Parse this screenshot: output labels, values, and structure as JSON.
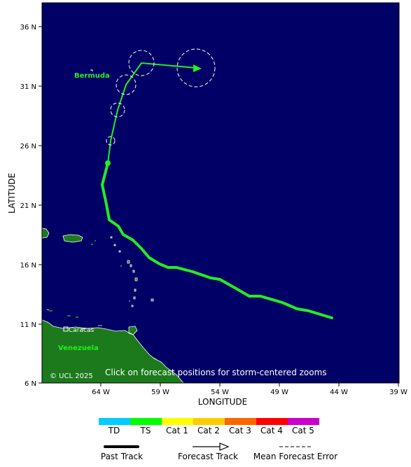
{
  "map": {
    "labels": {
      "bermuda": "Bermuda",
      "caracas": "Caracas",
      "venezuela": "Venezuela",
      "copyright": "© UCL 2025",
      "hint": "Click on forecast positions for storm-centered zooms"
    },
    "axes": {
      "x_title": "LONGITUDE",
      "y_title": "LATITUDE",
      "lat_ticks": [
        "36 N",
        "31 N",
        "26 N",
        "21 N",
        "16 N",
        "11 N",
        "6 N"
      ],
      "lon_ticks": [
        "64 W",
        "59 W",
        "54 W",
        "49 W",
        "44 W",
        "39 W"
      ]
    },
    "colors": {
      "ocean": "#000066",
      "land": "#1c7a1c",
      "track": "#22ee22",
      "label": "#22ee22"
    }
  },
  "legend": {
    "categories": [
      {
        "label": "TD",
        "color": "#00ccff"
      },
      {
        "label": "TS",
        "color": "#00ff00"
      },
      {
        "label": "Cat 1",
        "color": "#ffff00"
      },
      {
        "label": "Cat 2",
        "color": "#ffcc00"
      },
      {
        "label": "Cat 3",
        "color": "#ff6600"
      },
      {
        "label": "Cat 4",
        "color": "#ff0000"
      },
      {
        "label": "Cat 5",
        "color": "#cc00cc"
      }
    ],
    "past_track": "Past Track",
    "forecast_track": "Forecast Track",
    "mean_error": "Mean Forecast Error"
  }
}
